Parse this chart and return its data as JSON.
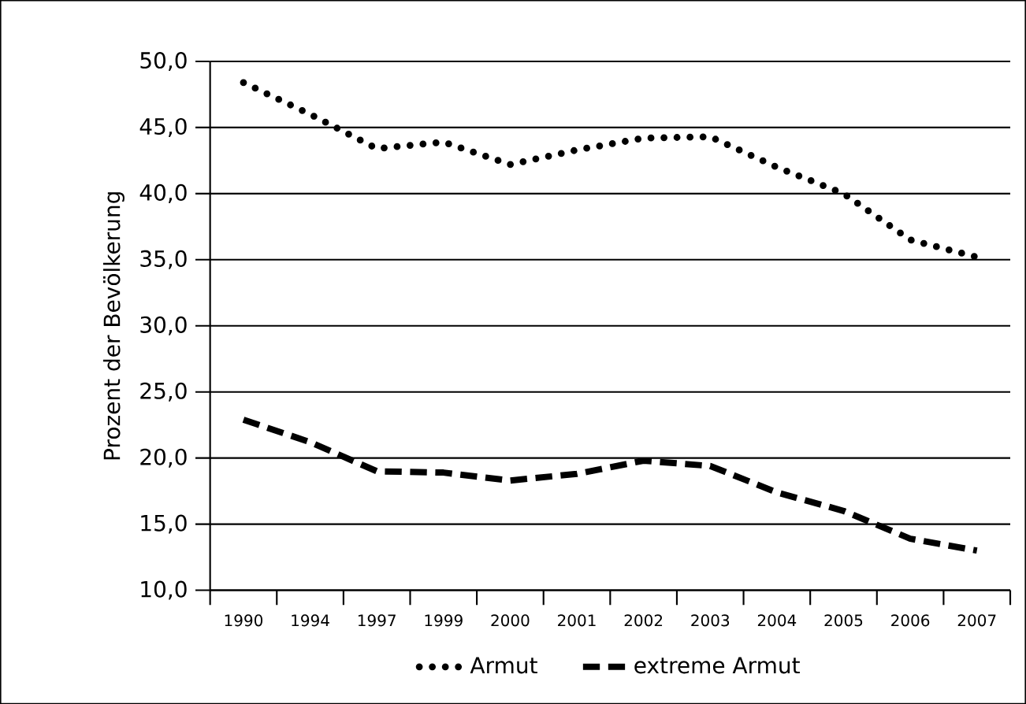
{
  "chart_data": {
    "type": "line",
    "ylabel": "Prozent der Bevölkerung",
    "categories": [
      "1990",
      "1994",
      "1997",
      "1999",
      "2000",
      "2001",
      "2002",
      "2003",
      "2004",
      "2005",
      "2006",
      "2007"
    ],
    "series": [
      {
        "name": "Armut",
        "color": "#000000",
        "line_style": "dotted",
        "values": [
          48.4,
          46.0,
          43.4,
          43.9,
          42.2,
          43.3,
          44.2,
          44.3,
          42.0,
          40.0,
          36.5,
          35.2
        ]
      },
      {
        "name": "extreme Armut",
        "color": "#000000",
        "line_style": "dashed",
        "values": [
          22.9,
          21.2,
          19.0,
          18.9,
          18.3,
          18.8,
          19.8,
          19.4,
          17.4,
          16.0,
          13.9,
          13.0
        ]
      }
    ],
    "ylim": [
      10,
      50
    ],
    "yticks": [
      {
        "value": 10,
        "label": "10,0"
      },
      {
        "value": 15,
        "label": "15,0"
      },
      {
        "value": 20,
        "label": "20,0"
      },
      {
        "value": 25,
        "label": "25,0"
      },
      {
        "value": 30,
        "label": "30,0"
      },
      {
        "value": 35,
        "label": "35,0"
      },
      {
        "value": 40,
        "label": "40,0"
      },
      {
        "value": 45,
        "label": "45,0"
      },
      {
        "value": 50,
        "label": "50,0"
      }
    ],
    "grid": "y",
    "legend": "bottom"
  }
}
